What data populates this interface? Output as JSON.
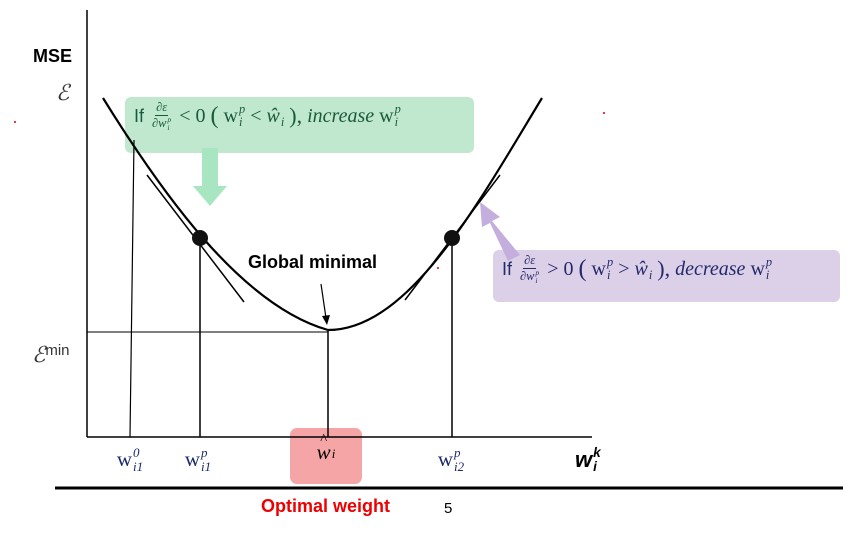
{
  "axis": {
    "y_label": "MSE",
    "y_symbol": "ℰ",
    "y_min": {
      "base": "ℰ",
      "sup": "min"
    },
    "x_label": {
      "base": "w",
      "sup": "k",
      "sub": "i"
    }
  },
  "x_points": [
    {
      "base": "w",
      "sup": "0",
      "sub": "i1"
    },
    {
      "base": "w",
      "sup": "p",
      "sub": "i1"
    },
    {
      "hat": "^",
      "base": "w",
      "sub": "i"
    },
    {
      "base": "w",
      "sup": "p",
      "sub": "i2"
    }
  ],
  "annotation": "Global minimal",
  "rules": [
    {
      "prefix": "If",
      "numerator": "∂ε",
      "denominator": {
        "base": "∂w",
        "sup": "p",
        "sub": "i"
      },
      "sign": "< 0",
      "open": "(",
      "w": {
        "base": "w",
        "sup": "p",
        "sub": "i"
      },
      "relation": "<",
      "w_hat": {
        "base": "ŵ",
        "sub": "i"
      },
      "close": "),",
      "action": "increase",
      "target": {
        "base": "w",
        "sup": "p",
        "sub": "i"
      }
    },
    {
      "prefix": "If",
      "numerator": "∂ε",
      "denominator": {
        "base": "∂w",
        "sup": "p",
        "sub": "i"
      },
      "sign": "> 0",
      "open": "(",
      "w": {
        "base": "w",
        "sup": "p",
        "sub": "i"
      },
      "relation": ">",
      "w_hat": {
        "base": "ŵ",
        "sub": "i"
      },
      "close": "),",
      "action": "decrease",
      "target": {
        "base": "w",
        "sup": "p",
        "sub": "i"
      }
    }
  ],
  "footer": {
    "caption": "Optimal weight",
    "page": "5"
  }
}
